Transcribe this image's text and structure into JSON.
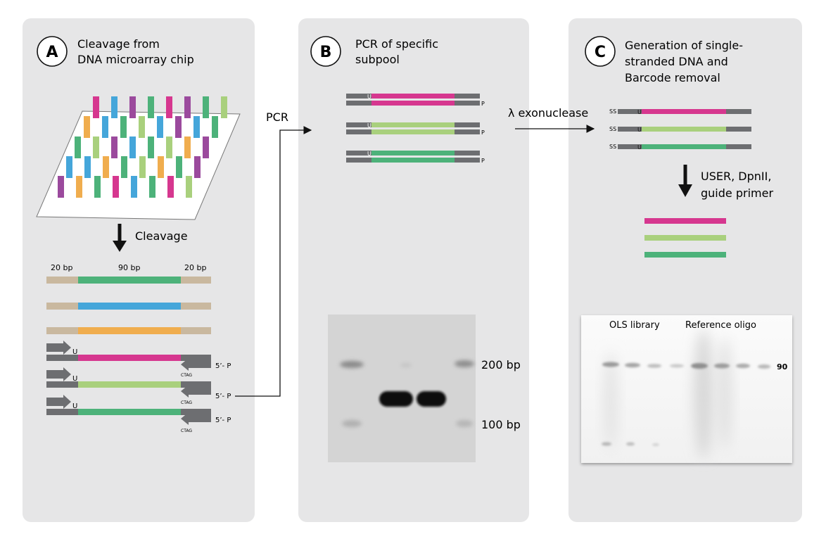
{
  "panels": [
    {
      "letter": "A",
      "title": [
        "Cleavage from",
        "DNA microarray chip"
      ]
    },
    {
      "letter": "B",
      "title": [
        "PCR of specific",
        "subpool"
      ]
    },
    {
      "letter": "C",
      "title": [
        "Generation of single-",
        "stranded DNA and",
        "Barcode removal"
      ]
    }
  ],
  "labels": {
    "cleavage": "Cleavage",
    "pcr": "PCR",
    "exonuclease": "λ exonuclease",
    "user_step": [
      "USER, DpnII,",
      "guide primer"
    ],
    "seg_left": "20 bp",
    "seg_mid": "90 bp",
    "seg_right": "20 bp",
    "u": "U",
    "p": "P",
    "five_p": "5’- P",
    "ctag": "CTAG",
    "ss": "SS",
    "gel_200": "200 bp",
    "gel_100": "100 bp",
    "page_ols": "OLS library",
    "page_ref": "Reference oligo",
    "page_90": "90"
  },
  "colors": {
    "panel": "#e6e6e7",
    "magenta": "#d6378f",
    "lightgreen": "#a9d07d",
    "green": "#4db27a",
    "blue": "#45a6da",
    "orange": "#f0ad4e",
    "purple": "#9b4a9d",
    "tan": "#c9b89f",
    "gray": "#6d6e71"
  }
}
